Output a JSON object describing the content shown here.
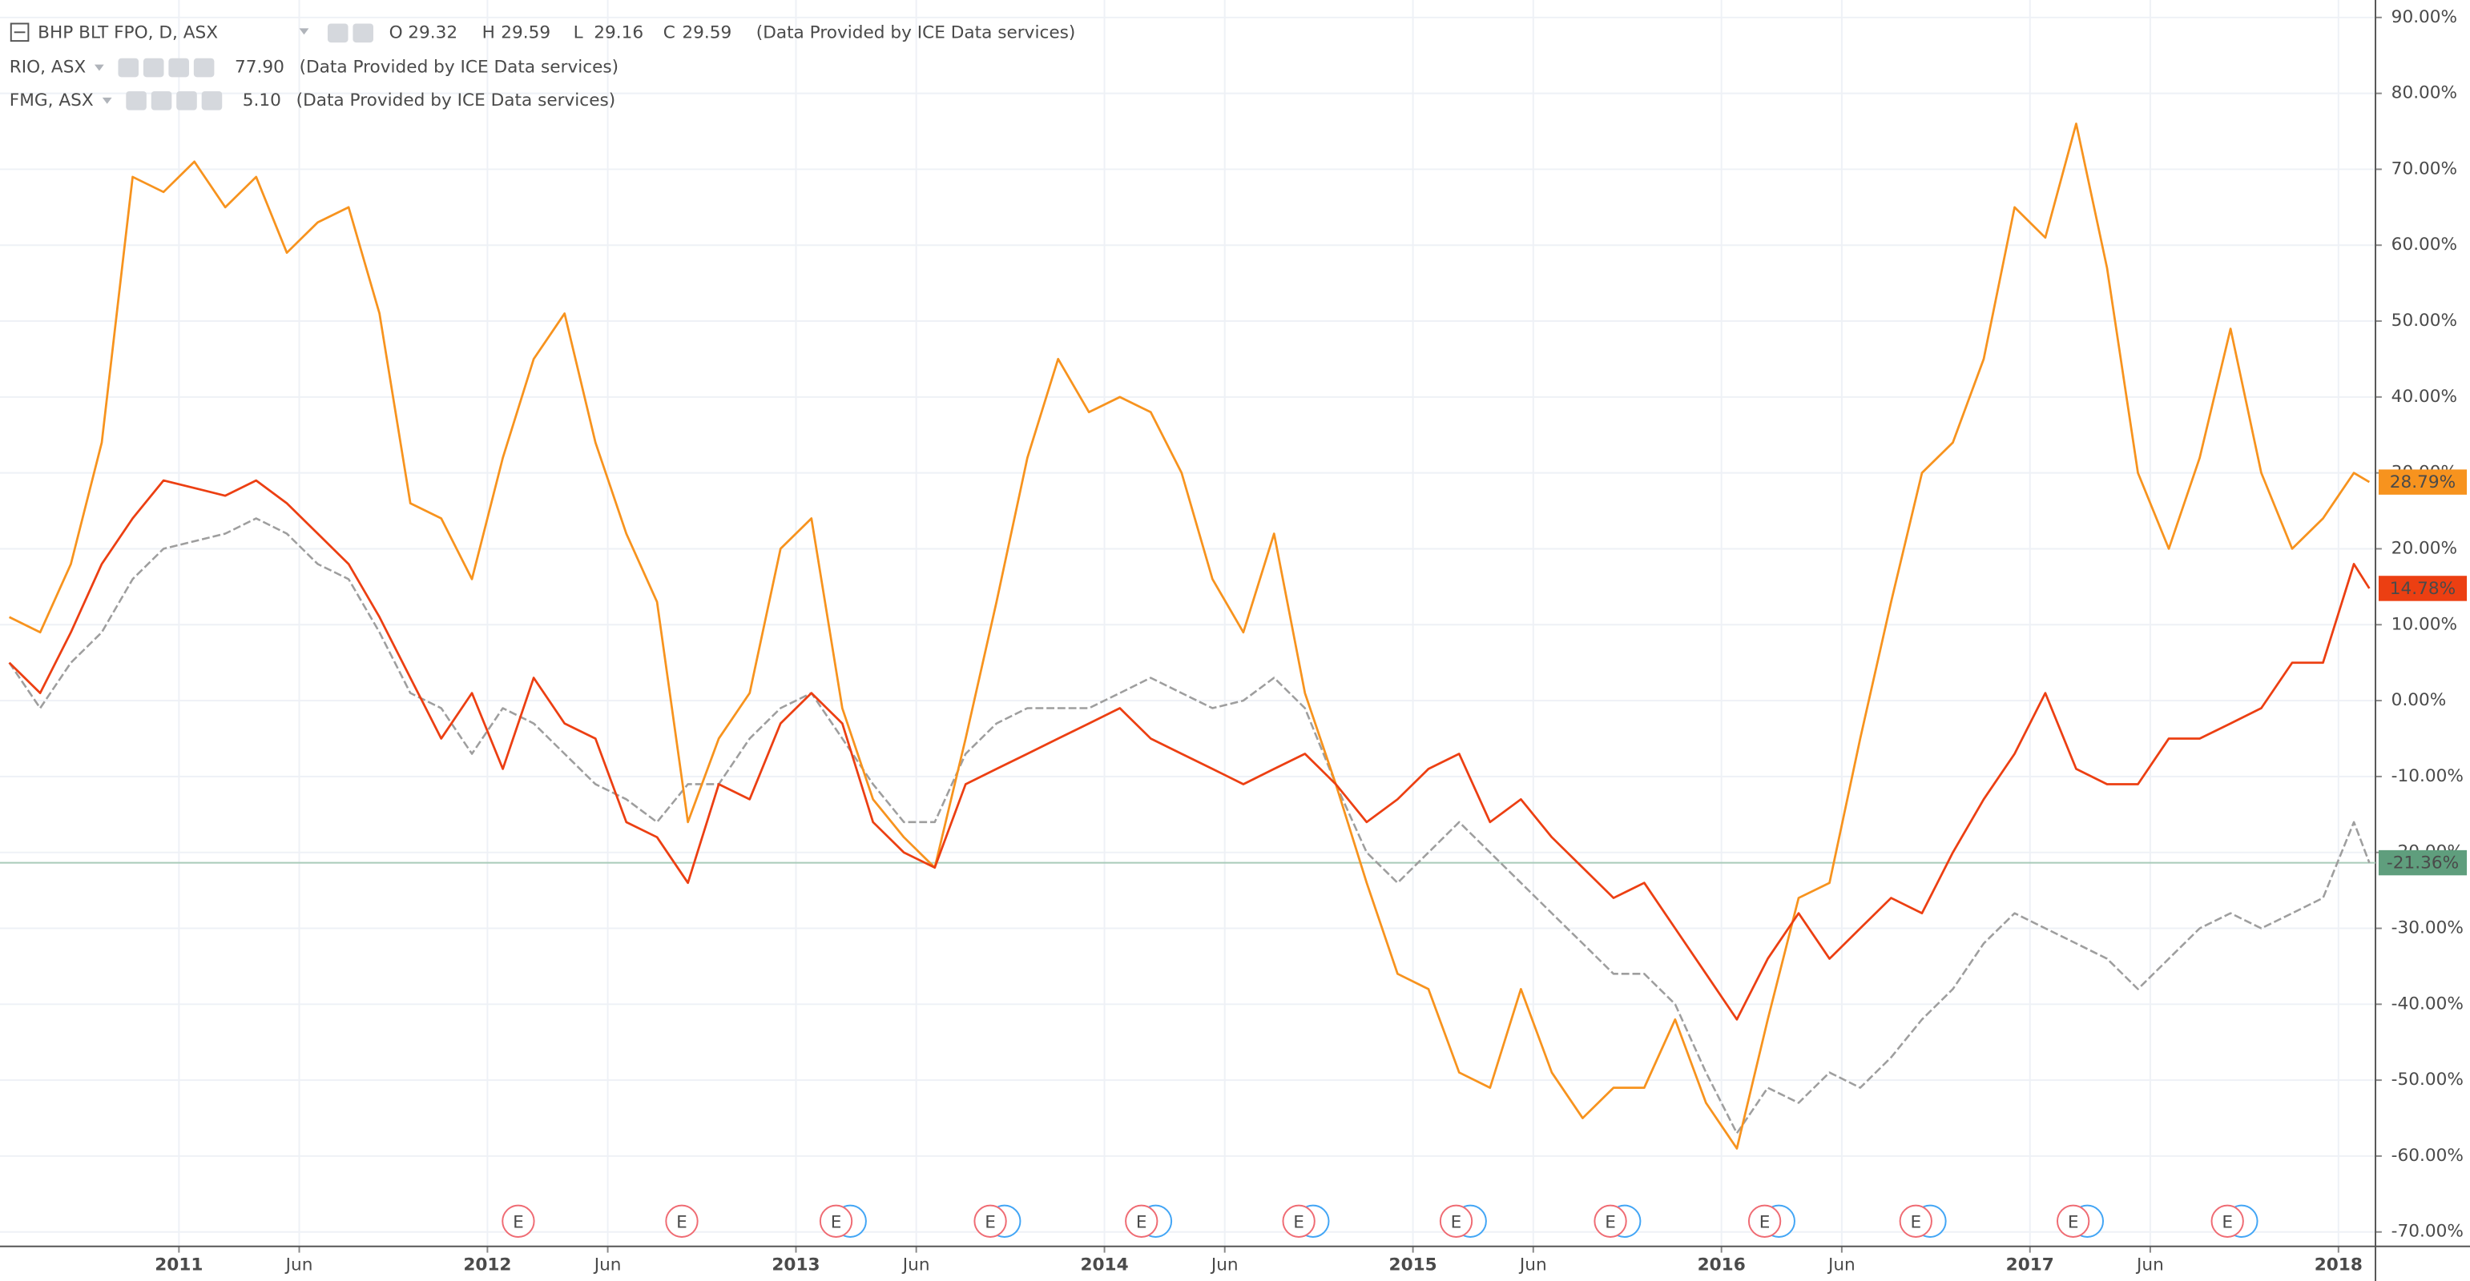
{
  "chart_data": {
    "type": "line",
    "xlim": [
      2010.42,
      2018.12
    ],
    "ylim": [
      -71.9,
      92.3
    ],
    "xticks": [
      2011,
      {
        "value": 2011.39,
        "label": "Jun"
      },
      2012,
      {
        "value": 2012.39,
        "label": "Jun"
      },
      2013,
      {
        "value": 2013.39,
        "label": "Jun"
      },
      2014,
      {
        "value": 2014.39,
        "label": "Jun"
      },
      2015,
      {
        "value": 2015.39,
        "label": "Jun"
      },
      2016,
      {
        "value": 2016.39,
        "label": "Jun"
      },
      2017,
      {
        "value": 2017.39,
        "label": "Jun"
      },
      2018
    ],
    "yticks": [
      {
        "value": 90,
        "label": "90.00%"
      },
      {
        "value": 80,
        "label": "80.00%"
      },
      {
        "value": 70,
        "label": "70.00%"
      },
      {
        "value": 60,
        "label": "60.00%"
      },
      {
        "value": 50,
        "label": "50.00%"
      },
      {
        "value": 40,
        "label": "40.00%"
      },
      {
        "value": 30,
        "label": "30.00%"
      },
      {
        "value": 20,
        "label": "20.00%"
      },
      {
        "value": 10,
        "label": "10.00%"
      },
      {
        "value": 0,
        "label": "0.00%"
      },
      {
        "value": -10,
        "label": "-10.00%"
      },
      {
        "value": -20,
        "label": "-20.00%"
      },
      {
        "value": -30,
        "label": "-30.00%"
      },
      {
        "value": -40,
        "label": "-40.00%"
      },
      {
        "value": -50,
        "label": "-50.00%"
      },
      {
        "value": -60,
        "label": "-60.00%"
      },
      {
        "value": -70,
        "label": "-70.00%"
      }
    ],
    "grid": true,
    "x": [
      2010.45,
      2010.55,
      2010.65,
      2010.75,
      2010.85,
      2010.95,
      2011.05,
      2011.15,
      2011.25,
      2011.35,
      2011.45,
      2011.55,
      2011.65,
      2011.75,
      2011.85,
      2011.95,
      2012.05,
      2012.15,
      2012.25,
      2012.35,
      2012.45,
      2012.55,
      2012.65,
      2012.75,
      2012.85,
      2012.95,
      2013.05,
      2013.15,
      2013.25,
      2013.35,
      2013.45,
      2013.55,
      2013.65,
      2013.75,
      2013.85,
      2013.95,
      2014.05,
      2014.15,
      2014.25,
      2014.35,
      2014.45,
      2014.55,
      2014.65,
      2014.75,
      2014.85,
      2014.95,
      2015.05,
      2015.15,
      2015.25,
      2015.35,
      2015.45,
      2015.55,
      2015.65,
      2015.75,
      2015.85,
      2015.95,
      2016.05,
      2016.15,
      2016.25,
      2016.35,
      2016.45,
      2016.55,
      2016.65,
      2016.75,
      2016.85,
      2016.95,
      2017.05,
      2017.15,
      2017.25,
      2017.35,
      2017.45,
      2017.55,
      2017.65,
      2017.75,
      2017.85,
      2017.95,
      2018.05,
      2018.1
    ],
    "series": [
      {
        "name": "BHP BLT FPO, D, ASX",
        "color": "#9e9e9e",
        "dashed": true,
        "price_line": true,
        "label_color": "#5f9e7d",
        "ohlc": [
          {
            "label": "O",
            "value": 29.32
          },
          {
            "label": "H",
            "value": 29.59
          },
          {
            "label": "L",
            "value": 29.16
          },
          {
            "label": "C",
            "value": 29.59
          }
        ],
        "source": "(Data Provided by ICE Data services)",
        "last_label": "-21.36%",
        "values": [
          5,
          -1,
          5,
          9,
          16,
          20,
          21,
          22,
          24,
          22,
          18,
          16,
          9,
          1,
          -1,
          -7,
          -1,
          -3,
          -7,
          -11,
          -13,
          -16,
          -11,
          -11,
          -5,
          -1,
          1,
          -5,
          -11,
          -16,
          -16,
          -7,
          -3,
          -1,
          -1,
          -1,
          1,
          3,
          1,
          -1,
          0,
          3,
          -1,
          -11,
          -20,
          -24,
          -20,
          -16,
          -20,
          -24,
          -28,
          -32,
          -36,
          -36,
          -40,
          -49,
          -57,
          -51,
          -53,
          -49,
          -51,
          -47,
          -42,
          -38,
          -32,
          -28,
          -30,
          -32,
          -34,
          -38,
          -34,
          -30,
          -28,
          -30,
          -28,
          -26,
          -16,
          -21.36
        ]
      },
      {
        "name": "FMG, ASX",
        "color": "#f7931e",
        "price": "5.10",
        "source": "(Data Provided by ICE Data services)",
        "last_label": "28.79%",
        "values": [
          11,
          9,
          18,
          34,
          69,
          67,
          71,
          65,
          69,
          59,
          63,
          65,
          51,
          26,
          24,
          16,
          32,
          45,
          51,
          34,
          22,
          13,
          -16,
          -5,
          1,
          20,
          24,
          -1,
          -13,
          -18,
          -22,
          -5,
          13,
          32,
          45,
          38,
          40,
          38,
          30,
          16,
          9,
          22,
          1,
          -11,
          -24,
          -36,
          -38,
          -49,
          -51,
          -38,
          -49,
          -55,
          -51,
          -51,
          -42,
          -53,
          -59,
          -42,
          -26,
          -24,
          -5,
          13,
          30,
          34,
          45,
          65,
          61,
          76,
          57,
          30,
          20,
          32,
          49,
          30,
          20,
          24,
          30,
          28.79
        ]
      },
      {
        "name": "RIO, ASX",
        "color": "#ec3f12",
        "price": "77.90",
        "source": "(Data Provided by ICE Data services)",
        "last_label": "14.78%",
        "values": [
          5,
          1,
          9,
          18,
          24,
          29,
          28,
          27,
          29,
          26,
          22,
          18,
          11,
          3,
          -5,
          1,
          -9,
          3,
          -3,
          -5,
          -16,
          -18,
          -24,
          -11,
          -13,
          -3,
          1,
          -3,
          -16,
          -20,
          -22,
          -11,
          -9,
          -7,
          -5,
          -3,
          -1,
          -5,
          -7,
          -9,
          -11,
          -9,
          -7,
          -11,
          -16,
          -13,
          -9,
          -7,
          -16,
          -13,
          -18,
          -22,
          -26,
          -24,
          -30,
          -36,
          -42,
          -34,
          -28,
          -34,
          -30,
          -26,
          -28,
          -20,
          -13,
          -7,
          1,
          -9,
          -11,
          -11,
          -5,
          -5,
          -3,
          -1,
          5,
          5,
          18,
          14.78
        ]
      }
    ],
    "events": [
      {
        "x": 2012.1,
        "label": "E",
        "dividend": false
      },
      {
        "x": 2012.63,
        "label": "E",
        "dividend": false
      },
      {
        "x": 2013.13,
        "label": "E",
        "dividend": true
      },
      {
        "x": 2013.63,
        "label": "E",
        "dividend": true
      },
      {
        "x": 2014.12,
        "label": "E",
        "dividend": true
      },
      {
        "x": 2014.63,
        "label": "E",
        "dividend": true
      },
      {
        "x": 2015.14,
        "label": "E",
        "dividend": true
      },
      {
        "x": 2015.64,
        "label": "E",
        "dividend": true
      },
      {
        "x": 2016.14,
        "label": "E",
        "dividend": true
      },
      {
        "x": 2016.63,
        "label": "E",
        "dividend": true
      },
      {
        "x": 2017.14,
        "label": "E",
        "dividend": true
      },
      {
        "x": 2017.64,
        "label": "E",
        "dividend": true
      }
    ]
  }
}
